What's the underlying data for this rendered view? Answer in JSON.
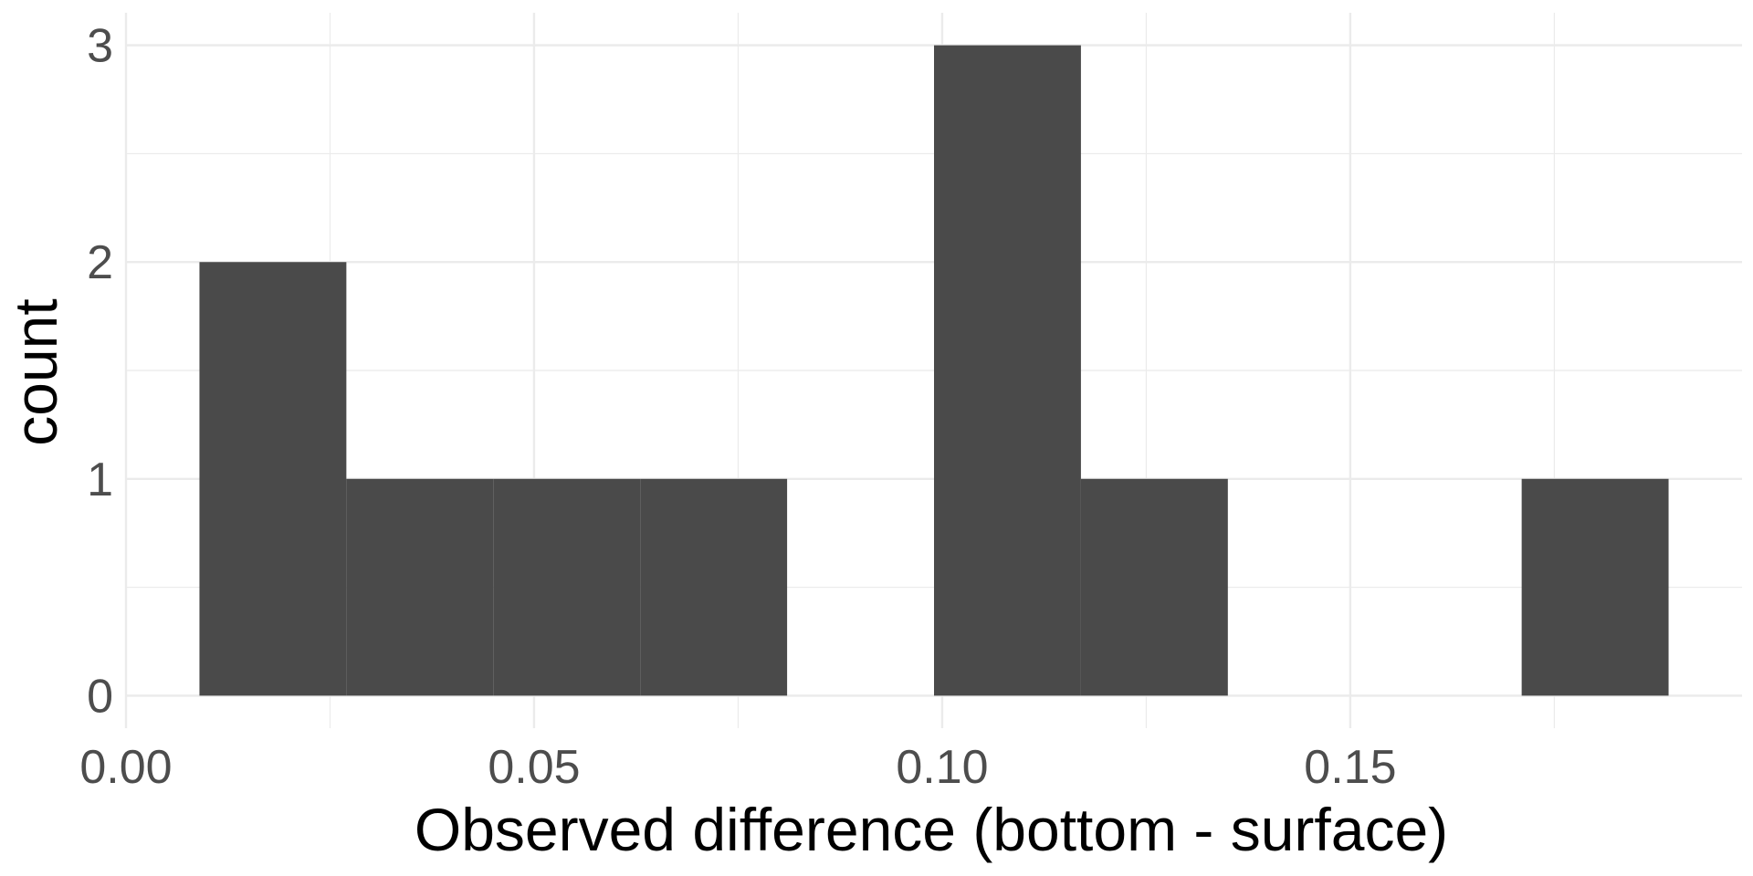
{
  "chart_data": {
    "type": "bar",
    "subtype": "histogram",
    "title": "",
    "xlabel": "Observed difference (bottom - surface)",
    "ylabel": "count",
    "xlim": [
      0.0,
      0.198
    ],
    "ylim": [
      -0.15,
      3.15
    ],
    "x_ticks": [
      {
        "value": 0.0,
        "label": "0.00"
      },
      {
        "value": 0.05,
        "label": "0.05"
      },
      {
        "value": 0.1,
        "label": "0.10"
      },
      {
        "value": 0.15,
        "label": "0.15"
      }
    ],
    "x_minor_ticks": [
      0.025,
      0.075,
      0.125,
      0.175
    ],
    "y_ticks": [
      {
        "value": 0,
        "label": "0"
      },
      {
        "value": 1,
        "label": "1"
      },
      {
        "value": 2,
        "label": "2"
      },
      {
        "value": 3,
        "label": "3"
      }
    ],
    "y_minor_ticks": [
      0.5,
      1.5,
      2.5
    ],
    "grid": true,
    "bar_color": "#4a4a4a",
    "grid_color": "#ebebeb",
    "bins": [
      {
        "x0": 0.009,
        "x1": 0.027,
        "count": 2
      },
      {
        "x0": 0.027,
        "x1": 0.045,
        "count": 1
      },
      {
        "x0": 0.045,
        "x1": 0.063,
        "count": 1
      },
      {
        "x0": 0.063,
        "x1": 0.081,
        "count": 1
      },
      {
        "x0": 0.081,
        "x1": 0.099,
        "count": 0
      },
      {
        "x0": 0.099,
        "x1": 0.117,
        "count": 3
      },
      {
        "x0": 0.117,
        "x1": 0.135,
        "count": 1
      },
      {
        "x0": 0.135,
        "x1": 0.153,
        "count": 0
      },
      {
        "x0": 0.153,
        "x1": 0.171,
        "count": 0
      },
      {
        "x0": 0.171,
        "x1": 0.189,
        "count": 1
      }
    ]
  }
}
